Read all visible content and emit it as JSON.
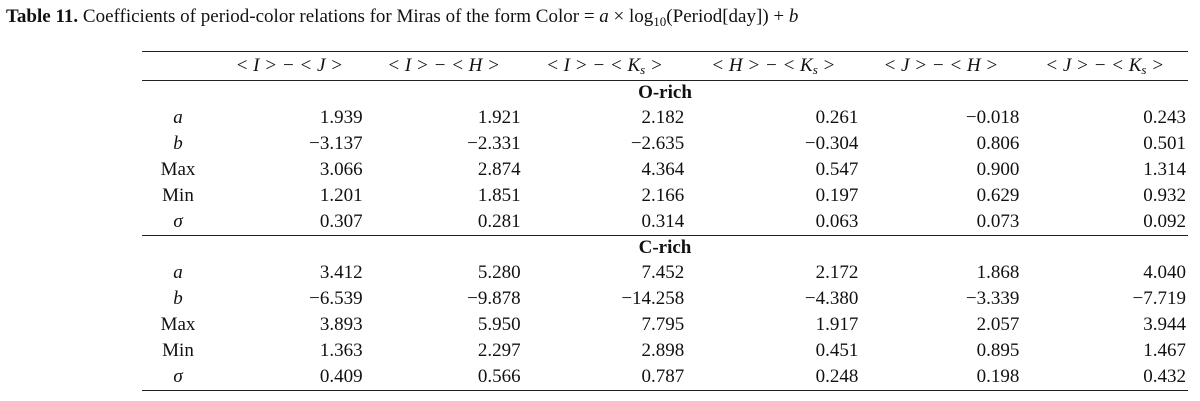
{
  "caption": {
    "label": "Table 11.",
    "text_before": "Coefficients of period-color relations for Miras of the form Color =",
    "formula_a": "a",
    "formula_times": "×",
    "formula_log": "log",
    "formula_sub": "10",
    "formula_arg": "(Period[day]) +",
    "formula_b": "b"
  },
  "columns": [
    {
      "left": "< I > − < J >",
      "sub": ""
    },
    {
      "left": "< I > − < H >",
      "sub": ""
    },
    {
      "left": "< I > − < K",
      "sub": "s",
      "right": " >"
    },
    {
      "left": "< H > − < K",
      "sub": "s",
      "right": " >"
    },
    {
      "left": "< J > − < H >",
      "sub": ""
    },
    {
      "left": "< J > − < K",
      "sub": "s",
      "right": " >"
    }
  ],
  "sections": [
    {
      "title": "O-rich",
      "rows": [
        {
          "label": "a",
          "values": [
            "1.939",
            "1.921",
            "2.182",
            "0.261",
            "−0.018",
            "0.243"
          ]
        },
        {
          "label": "b",
          "values": [
            "−3.137",
            "−2.331",
            "−2.635",
            "−0.304",
            "0.806",
            "0.501"
          ]
        },
        {
          "label": "Max",
          "values": [
            "3.066",
            "2.874",
            "4.364",
            "0.547",
            "0.900",
            "1.314"
          ]
        },
        {
          "label": "Min",
          "values": [
            "1.201",
            "1.851",
            "2.166",
            "0.197",
            "0.629",
            "0.932"
          ]
        },
        {
          "label": "σ",
          "values": [
            "0.307",
            "0.281",
            "0.314",
            "0.063",
            "0.073",
            "0.092"
          ]
        }
      ]
    },
    {
      "title": "C-rich",
      "rows": [
        {
          "label": "a",
          "values": [
            "3.412",
            "5.280",
            "7.452",
            "2.172",
            "1.868",
            "4.040"
          ]
        },
        {
          "label": "b",
          "values": [
            "−6.539",
            "−9.878",
            "−14.258",
            "−4.380",
            "−3.339",
            "−7.719"
          ]
        },
        {
          "label": "Max",
          "values": [
            "3.893",
            "5.950",
            "7.795",
            "1.917",
            "2.057",
            "3.944"
          ]
        },
        {
          "label": "Min",
          "values": [
            "1.363",
            "2.297",
            "2.898",
            "0.451",
            "0.895",
            "1.467"
          ]
        },
        {
          "label": "σ",
          "values": [
            "0.409",
            "0.566",
            "0.787",
            "0.248",
            "0.198",
            "0.432"
          ]
        }
      ]
    }
  ]
}
